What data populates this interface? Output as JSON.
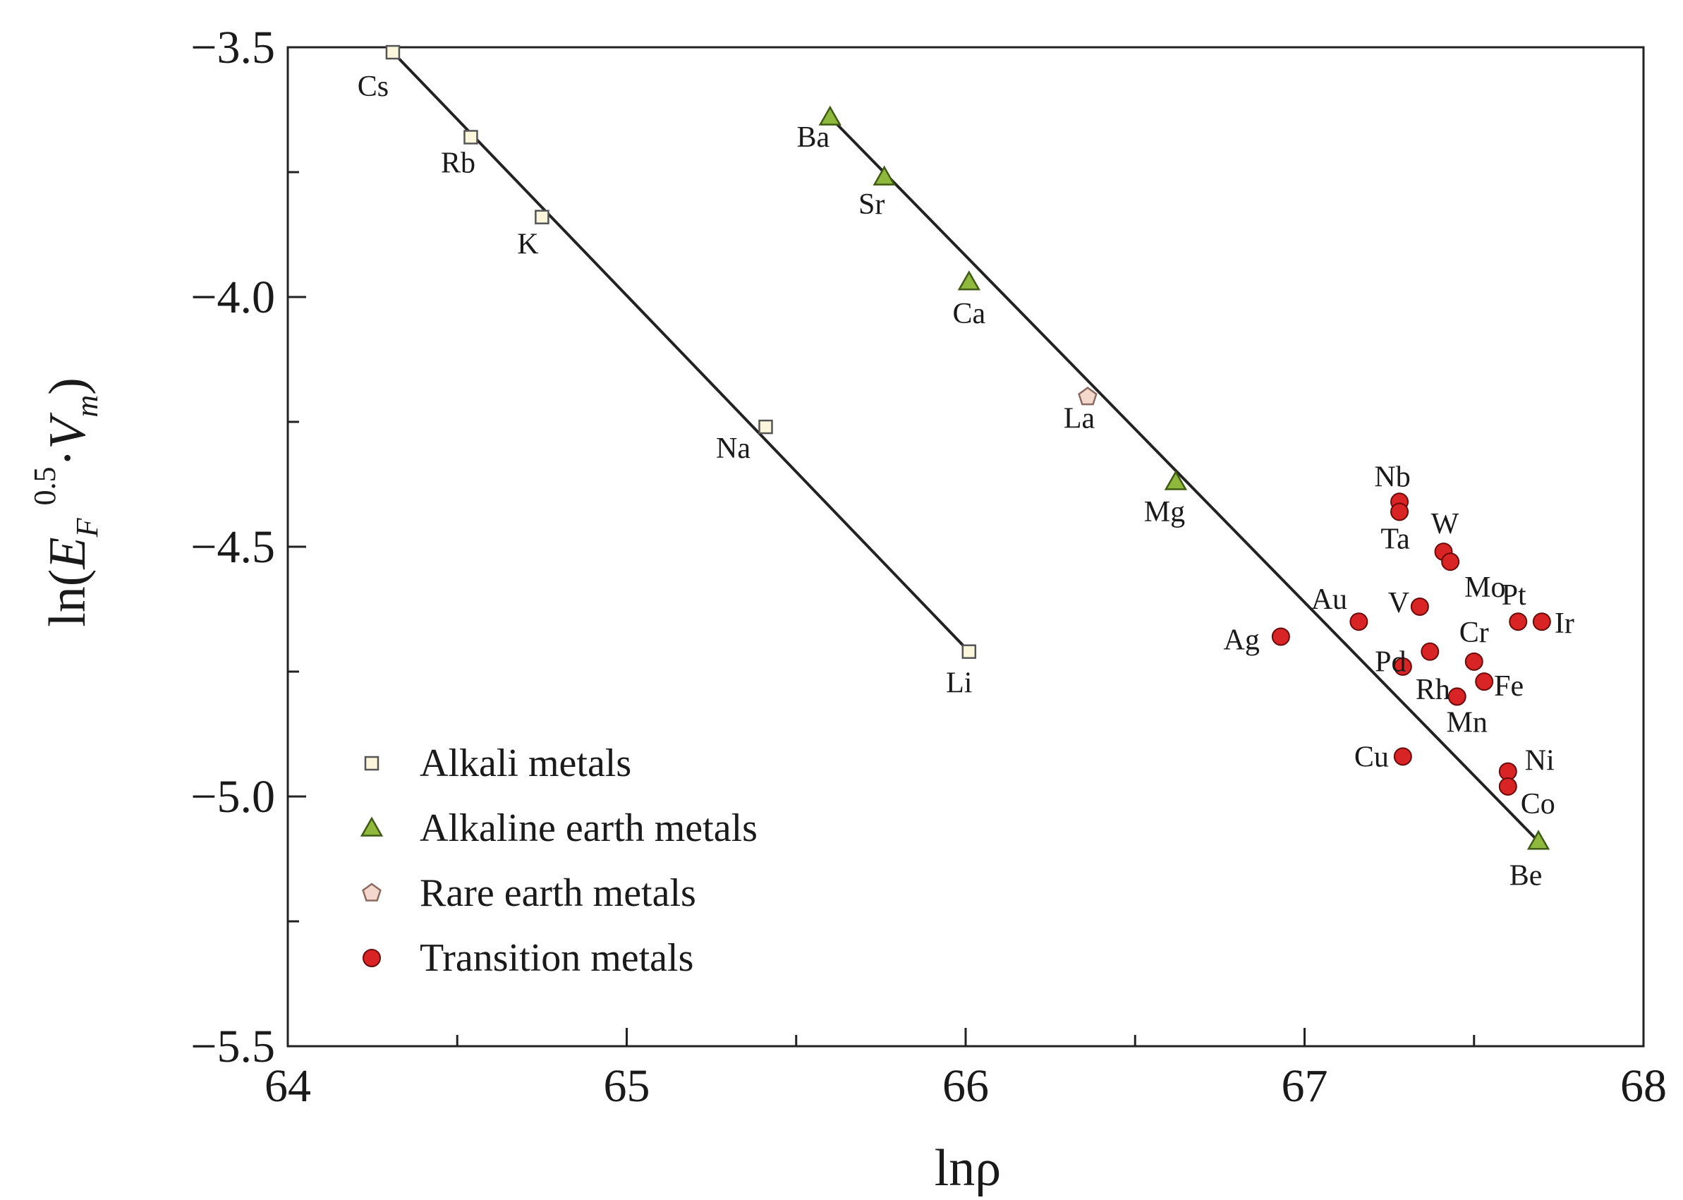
{
  "chart_data": {
    "type": "scatter",
    "title": "",
    "xlabel": "lnρ",
    "ylabel": "ln(E_F^0.5·V_m)",
    "ylabel_parts": {
      "prefix": "ln(",
      "E": "E",
      "F": "F",
      "exp": "0.5",
      "dot": "·",
      "V": "V",
      "m": "m",
      "suffix": ")"
    },
    "xlim": [
      64,
      68
    ],
    "ylim": [
      -5.5,
      -3.5
    ],
    "x_ticks": [
      "64",
      "65",
      "66",
      "67",
      "68"
    ],
    "y_ticks": [
      "−3.5",
      "−4.0",
      "−4.5",
      "−5.0",
      "−5.5"
    ],
    "legend_position": "bottom-left",
    "series": [
      {
        "name": "Alkali metals",
        "marker": "square",
        "color": "#fbf6dc",
        "stroke": "#555555",
        "points": [
          {
            "label": "Cs",
            "x": 64.31,
            "y": -3.51
          },
          {
            "label": "Rb",
            "x": 64.54,
            "y": -3.68
          },
          {
            "label": "K",
            "x": 64.75,
            "y": -3.84
          },
          {
            "label": "Na",
            "x": 65.41,
            "y": -4.26
          },
          {
            "label": "Li",
            "x": 66.01,
            "y": -4.71
          }
        ]
      },
      {
        "name": "Alkaline earth metals",
        "marker": "triangle",
        "color": "#8fb93c",
        "stroke": "#3f5b14",
        "points": [
          {
            "label": "Ba",
            "x": 65.6,
            "y": -3.64
          },
          {
            "label": "Sr",
            "x": 65.76,
            "y": -3.76
          },
          {
            "label": "Ca",
            "x": 66.01,
            "y": -3.97
          },
          {
            "label": "Mg",
            "x": 66.62,
            "y": -4.37
          },
          {
            "label": "Be",
            "x": 67.69,
            "y": -5.09
          }
        ]
      },
      {
        "name": "Rare earth metals",
        "marker": "pentagon",
        "color": "#f5d8cc",
        "stroke": "#8a6a60",
        "points": [
          {
            "label": "La",
            "x": 66.36,
            "y": -4.2
          }
        ]
      },
      {
        "name": "Transition metals",
        "marker": "circle",
        "color": "#d82424",
        "stroke": "#6b0a0a",
        "points": [
          {
            "label": "Nb",
            "x": 67.28,
            "y": -4.41
          },
          {
            "label": "Ta",
            "x": 67.28,
            "y": -4.43
          },
          {
            "label": "W",
            "x": 67.41,
            "y": -4.51
          },
          {
            "label": "Mo",
            "x": 67.43,
            "y": -4.53
          },
          {
            "label": "V",
            "x": 67.34,
            "y": -4.62
          },
          {
            "label": "Au",
            "x": 67.16,
            "y": -4.65
          },
          {
            "label": "Ag",
            "x": 66.93,
            "y": -4.68
          },
          {
            "label": "Pt",
            "x": 67.63,
            "y": -4.65
          },
          {
            "label": "Ir",
            "x": 67.7,
            "y": -4.65
          },
          {
            "label": "Pd",
            "x": 67.37,
            "y": -4.71
          },
          {
            "label": "Cr",
            "x": 67.5,
            "y": -4.73
          },
          {
            "label": "Rh",
            "x": 67.29,
            "y": -4.74
          },
          {
            "label": "Fe",
            "x": 67.53,
            "y": -4.77
          },
          {
            "label": "Mn",
            "x": 67.45,
            "y": -4.8
          },
          {
            "label": "Cu",
            "x": 67.29,
            "y": -4.92
          },
          {
            "label": "Ni",
            "x": 67.6,
            "y": -4.95
          },
          {
            "label": "Co",
            "x": 67.6,
            "y": -4.98
          }
        ]
      }
    ],
    "fit_lines": [
      {
        "name": "alkali-fit",
        "from": [
          64.31,
          -3.51
        ],
        "to": [
          66.01,
          -4.71
        ]
      },
      {
        "name": "alkaline-earth-fit",
        "from": [
          65.6,
          -3.64
        ],
        "to": [
          67.69,
          -5.09
        ]
      }
    ]
  }
}
